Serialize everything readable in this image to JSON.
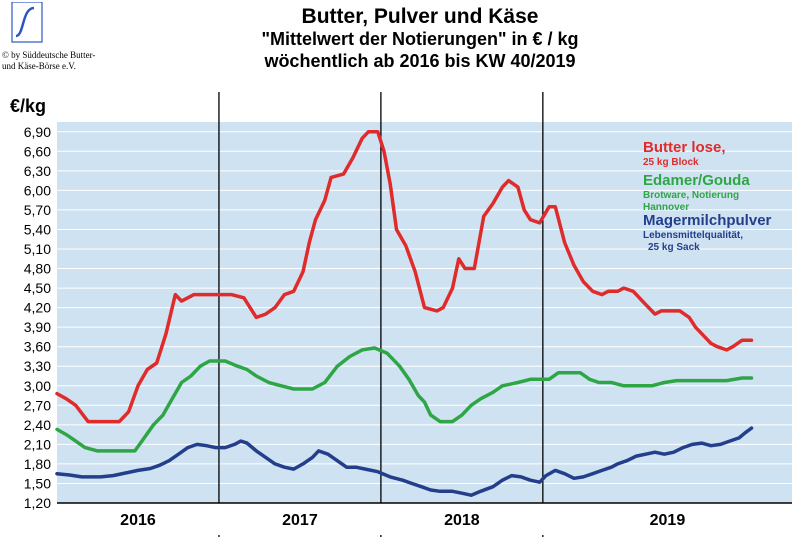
{
  "header": {
    "title": "Butter, Pulver und Käse",
    "subtitle": "\"Mittelwert der Notierungen\" in € / kg",
    "subtitle2": "wöchentlich ab 2016 bis KW 40/2019",
    "copyright_line1": "© by Süddeutsche Butter-",
    "copyright_line2": "und Käse-Börse e.V."
  },
  "colors": {
    "plot_background": "#cfe2f1",
    "grid": "#ffffff",
    "butter": "#e02b2b",
    "edamer": "#2fa646",
    "magermilch": "#233f8c",
    "logo_blue": "#2a56c6"
  },
  "chart_data": {
    "type": "line",
    "ylabel": "€/kg",
    "ylim": [
      1.2,
      7.05
    ],
    "grid": true,
    "legend_position": "top-right",
    "year_labels": [
      "2016",
      "2017",
      "2018",
      "2019"
    ],
    "y_ticks": [
      "1,20",
      "1,50",
      "1,80",
      "2,10",
      "2,40",
      "2,70",
      "3,00",
      "3,30",
      "3,60",
      "3,90",
      "4,20",
      "4,50",
      "4,80",
      "5,10",
      "5,40",
      "5,70",
      "6,00",
      "6,30",
      "6,60",
      "6,90"
    ],
    "series": [
      {
        "key": "butter",
        "name": "Butter lose,",
        "subname": "25 kg Block",
        "points": [
          [
            0,
            2.88
          ],
          [
            3,
            2.8
          ],
          [
            6,
            2.7
          ],
          [
            10,
            2.45
          ],
          [
            20,
            2.45
          ],
          [
            23,
            2.6
          ],
          [
            26,
            3.0
          ],
          [
            29,
            3.25
          ],
          [
            32,
            3.35
          ],
          [
            35,
            3.8
          ],
          [
            38,
            4.4
          ],
          [
            40,
            4.3
          ],
          [
            44,
            4.4
          ],
          [
            50,
            4.4
          ],
          [
            56,
            4.4
          ],
          [
            60,
            4.35
          ],
          [
            64,
            4.05
          ],
          [
            67,
            4.1
          ],
          [
            70,
            4.2
          ],
          [
            73,
            4.4
          ],
          [
            76,
            4.45
          ],
          [
            79,
            4.75
          ],
          [
            81,
            5.2
          ],
          [
            83,
            5.55
          ],
          [
            86,
            5.85
          ],
          [
            88,
            6.2
          ],
          [
            92,
            6.25
          ],
          [
            95,
            6.5
          ],
          [
            98,
            6.8
          ],
          [
            100,
            6.9
          ],
          [
            103,
            6.9
          ],
          [
            105,
            6.6
          ],
          [
            107,
            6.1
          ],
          [
            109,
            5.4
          ],
          [
            112,
            5.15
          ],
          [
            115,
            4.75
          ],
          [
            118,
            4.2
          ],
          [
            122,
            4.15
          ],
          [
            124,
            4.2
          ],
          [
            127,
            4.5
          ],
          [
            129,
            4.95
          ],
          [
            131,
            4.8
          ],
          [
            134,
            4.8
          ],
          [
            137,
            5.6
          ],
          [
            140,
            5.8
          ],
          [
            143,
            6.05
          ],
          [
            145,
            6.15
          ],
          [
            148,
            6.05
          ],
          [
            150,
            5.7
          ],
          [
            152,
            5.55
          ],
          [
            155,
            5.5
          ],
          [
            158,
            5.75
          ],
          [
            160,
            5.75
          ],
          [
            163,
            5.2
          ],
          [
            166,
            4.85
          ],
          [
            169,
            4.6
          ],
          [
            172,
            4.45
          ],
          [
            175,
            4.4
          ],
          [
            177,
            4.45
          ],
          [
            180,
            4.45
          ],
          [
            182,
            4.5
          ],
          [
            185,
            4.45
          ],
          [
            189,
            4.25
          ],
          [
            192,
            4.1
          ],
          [
            194,
            4.15
          ],
          [
            200,
            4.15
          ],
          [
            203,
            4.05
          ],
          [
            205,
            3.9
          ],
          [
            207,
            3.8
          ],
          [
            210,
            3.65
          ],
          [
            212,
            3.6
          ],
          [
            215,
            3.55
          ],
          [
            217,
            3.6
          ],
          [
            220,
            3.7
          ],
          [
            223,
            3.7
          ]
        ]
      },
      {
        "key": "edamer",
        "name": "Edamer/Gouda",
        "subname": "Brotware, Notierung",
        "subname2": "Hannover",
        "points": [
          [
            0,
            2.33
          ],
          [
            3,
            2.25
          ],
          [
            6,
            2.15
          ],
          [
            9,
            2.05
          ],
          [
            13,
            2.0
          ],
          [
            25,
            2.0
          ],
          [
            28,
            2.2
          ],
          [
            31,
            2.4
          ],
          [
            34,
            2.55
          ],
          [
            37,
            2.8
          ],
          [
            40,
            3.05
          ],
          [
            43,
            3.15
          ],
          [
            46,
            3.3
          ],
          [
            49,
            3.38
          ],
          [
            54,
            3.38
          ],
          [
            58,
            3.3
          ],
          [
            61,
            3.25
          ],
          [
            64,
            3.15
          ],
          [
            68,
            3.05
          ],
          [
            72,
            3.0
          ],
          [
            76,
            2.95
          ],
          [
            82,
            2.95
          ],
          [
            86,
            3.05
          ],
          [
            90,
            3.3
          ],
          [
            94,
            3.45
          ],
          [
            98,
            3.55
          ],
          [
            102,
            3.58
          ],
          [
            106,
            3.5
          ],
          [
            110,
            3.3
          ],
          [
            113,
            3.1
          ],
          [
            116,
            2.85
          ],
          [
            118,
            2.75
          ],
          [
            120,
            2.55
          ],
          [
            123,
            2.45
          ],
          [
            127,
            2.45
          ],
          [
            130,
            2.55
          ],
          [
            133,
            2.7
          ],
          [
            136,
            2.8
          ],
          [
            140,
            2.9
          ],
          [
            143,
            3.0
          ],
          [
            148,
            3.05
          ],
          [
            152,
            3.1
          ],
          [
            158,
            3.1
          ],
          [
            161,
            3.2
          ],
          [
            168,
            3.2
          ],
          [
            171,
            3.1
          ],
          [
            174,
            3.05
          ],
          [
            178,
            3.05
          ],
          [
            182,
            3.0
          ],
          [
            186,
            3.0
          ],
          [
            191,
            3.0
          ],
          [
            195,
            3.05
          ],
          [
            199,
            3.08
          ],
          [
            205,
            3.08
          ],
          [
            215,
            3.08
          ],
          [
            220,
            3.12
          ],
          [
            223,
            3.12
          ]
        ]
      },
      {
        "key": "magermilch",
        "name": "Magermilchpulver",
        "subname": "Lebensmittelqualität,",
        "subname2": "25 kg Sack",
        "points": [
          [
            0,
            1.65
          ],
          [
            4,
            1.63
          ],
          [
            8,
            1.6
          ],
          [
            14,
            1.6
          ],
          [
            18,
            1.62
          ],
          [
            22,
            1.66
          ],
          [
            26,
            1.7
          ],
          [
            30,
            1.73
          ],
          [
            33,
            1.78
          ],
          [
            36,
            1.85
          ],
          [
            39,
            1.95
          ],
          [
            42,
            2.05
          ],
          [
            45,
            2.1
          ],
          [
            48,
            2.08
          ],
          [
            51,
            2.05
          ],
          [
            54,
            2.05
          ],
          [
            57,
            2.1
          ],
          [
            59,
            2.15
          ],
          [
            61,
            2.12
          ],
          [
            64,
            2.0
          ],
          [
            67,
            1.9
          ],
          [
            70,
            1.8
          ],
          [
            73,
            1.75
          ],
          [
            76,
            1.72
          ],
          [
            79,
            1.8
          ],
          [
            82,
            1.9
          ],
          [
            84,
            2.0
          ],
          [
            87,
            1.95
          ],
          [
            90,
            1.85
          ],
          [
            93,
            1.75
          ],
          [
            96,
            1.75
          ],
          [
            99,
            1.72
          ],
          [
            103,
            1.68
          ],
          [
            107,
            1.6
          ],
          [
            111,
            1.55
          ],
          [
            114,
            1.5
          ],
          [
            117,
            1.45
          ],
          [
            120,
            1.4
          ],
          [
            123,
            1.38
          ],
          [
            127,
            1.38
          ],
          [
            130,
            1.35
          ],
          [
            133,
            1.32
          ],
          [
            136,
            1.38
          ],
          [
            140,
            1.45
          ],
          [
            143,
            1.55
          ],
          [
            146,
            1.62
          ],
          [
            149,
            1.6
          ],
          [
            152,
            1.55
          ],
          [
            155,
            1.52
          ],
          [
            157,
            1.62
          ],
          [
            160,
            1.7
          ],
          [
            163,
            1.65
          ],
          [
            166,
            1.58
          ],
          [
            169,
            1.6
          ],
          [
            172,
            1.65
          ],
          [
            175,
            1.7
          ],
          [
            178,
            1.75
          ],
          [
            180,
            1.8
          ],
          [
            183,
            1.85
          ],
          [
            186,
            1.92
          ],
          [
            189,
            1.95
          ],
          [
            192,
            1.98
          ],
          [
            195,
            1.95
          ],
          [
            198,
            1.98
          ],
          [
            201,
            2.05
          ],
          [
            204,
            2.1
          ],
          [
            207,
            2.12
          ],
          [
            210,
            2.08
          ],
          [
            213,
            2.1
          ],
          [
            216,
            2.15
          ],
          [
            219,
            2.2
          ],
          [
            221,
            2.28
          ],
          [
            223,
            2.35
          ]
        ]
      }
    ]
  }
}
